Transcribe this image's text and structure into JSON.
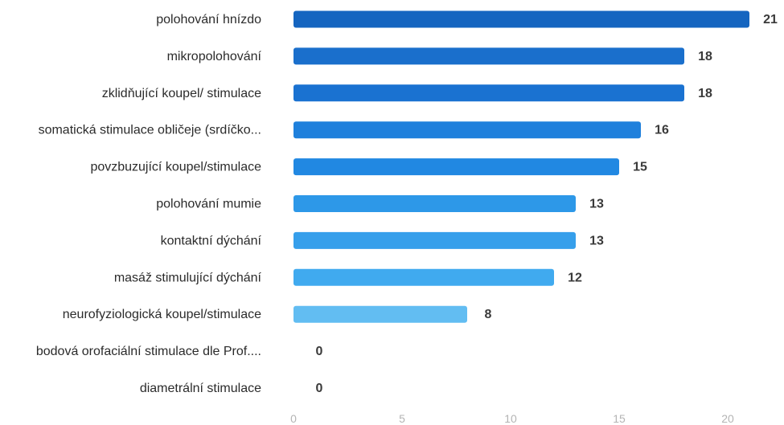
{
  "chart_data": {
    "type": "bar",
    "orientation": "horizontal",
    "categories": [
      "polohování hnízdo",
      "mikropolohování",
      "zklidňující koupel/ stimulace",
      "somatická stimulace obličeje (srdíčko...",
      "povzbuzující koupel/stimulace",
      "polohování mumie",
      "kontaktní dýchání",
      "masáž stimulující dýchání",
      "neurofyziologická koupel/stimulace",
      "bodová orofaciální stimulace dle Prof....",
      "diametrální stimulace"
    ],
    "values": [
      21,
      18,
      18,
      16,
      15,
      13,
      13,
      12,
      8,
      0,
      0
    ],
    "bar_colors": [
      "#1565c0",
      "#1a6fcc",
      "#1a72d1",
      "#1f80dc",
      "#2188e2",
      "#2d98e8",
      "#369feb",
      "#40aaef",
      "#62bdf2",
      "#8fd0f6",
      "#a9daf8"
    ],
    "xlim": [
      0,
      22
    ],
    "xticks": [
      0,
      5,
      10,
      15,
      20
    ],
    "grid": false,
    "legend": "none",
    "title": "",
    "xlabel": "",
    "ylabel": ""
  }
}
